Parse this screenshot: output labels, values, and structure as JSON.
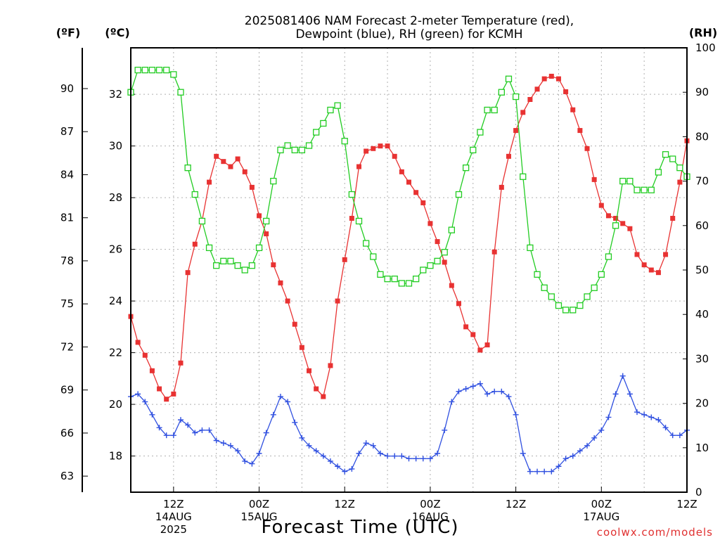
{
  "chart_data": {
    "type": "line",
    "title_line1": "2025081406 NAM Forecast 2-meter Temperature (red),",
    "title_line2": "Dewpoint (blue), RH (green) for KCMH",
    "xlabel": "Forecast Time (UTC)",
    "credit": "coolwx.com/models",
    "units": {
      "fahrenheit": "(ºF)",
      "celsius": "(ºC)",
      "rh": "(RH)"
    },
    "x_hours": [
      6,
      84
    ],
    "celsius_ylim": [
      16.6,
      33.8
    ],
    "rh_ylim": [
      0,
      100
    ],
    "celsius_ticks": [
      18,
      20,
      22,
      24,
      26,
      28,
      30,
      32
    ],
    "fahrenheit_ticks": [
      63,
      66,
      69,
      72,
      75,
      78,
      81,
      84,
      87,
      90
    ],
    "rh_ticks": [
      0,
      10,
      20,
      30,
      40,
      50,
      60,
      70,
      80,
      90,
      100
    ],
    "x_ticks": [
      {
        "hour": 12,
        "lines": [
          "12Z",
          "14AUG",
          "2025"
        ]
      },
      {
        "hour": 24,
        "lines": [
          "00Z",
          "15AUG"
        ]
      },
      {
        "hour": 36,
        "lines": [
          "12Z"
        ]
      },
      {
        "hour": 48,
        "lines": [
          "00Z",
          "16AUG"
        ]
      },
      {
        "hour": 60,
        "lines": [
          "12Z"
        ]
      },
      {
        "hour": 72,
        "lines": [
          "00Z",
          "17AUG"
        ]
      },
      {
        "hour": 84,
        "lines": [
          "12Z"
        ]
      }
    ],
    "series": [
      {
        "name": "Temperature",
        "color": "#e83232",
        "marker": "filled-square",
        "unit": "C",
        "values": [
          [
            6,
            23.4
          ],
          [
            7,
            22.4
          ],
          [
            8,
            21.9
          ],
          [
            9,
            21.3
          ],
          [
            10,
            20.6
          ],
          [
            11,
            20.2
          ],
          [
            12,
            20.4
          ],
          [
            13,
            21.6
          ],
          [
            14,
            25.1
          ],
          [
            15,
            26.2
          ],
          [
            16,
            27.1
          ],
          [
            17,
            28.6
          ],
          [
            18,
            29.6
          ],
          [
            19,
            29.4
          ],
          [
            20,
            29.2
          ],
          [
            21,
            29.5
          ],
          [
            22,
            29.0
          ],
          [
            23,
            28.4
          ],
          [
            24,
            27.3
          ],
          [
            25,
            26.6
          ],
          [
            26,
            25.4
          ],
          [
            27,
            24.7
          ],
          [
            28,
            24.0
          ],
          [
            29,
            23.1
          ],
          [
            30,
            22.2
          ],
          [
            31,
            21.3
          ],
          [
            32,
            20.6
          ],
          [
            33,
            20.3
          ],
          [
            34,
            21.5
          ],
          [
            35,
            24.0
          ],
          [
            36,
            25.6
          ],
          [
            37,
            27.2
          ],
          [
            38,
            29.2
          ],
          [
            39,
            29.8
          ],
          [
            40,
            29.9
          ],
          [
            41,
            30.0
          ],
          [
            42,
            30.0
          ],
          [
            43,
            29.6
          ],
          [
            44,
            29.0
          ],
          [
            45,
            28.6
          ],
          [
            46,
            28.2
          ],
          [
            47,
            27.8
          ],
          [
            48,
            27.0
          ],
          [
            49,
            26.3
          ],
          [
            50,
            25.5
          ],
          [
            51,
            24.6
          ],
          [
            52,
            23.9
          ],
          [
            53,
            23.0
          ],
          [
            54,
            22.7
          ],
          [
            55,
            22.1
          ],
          [
            56,
            22.3
          ],
          [
            57,
            25.9
          ],
          [
            58,
            28.4
          ],
          [
            59,
            29.6
          ],
          [
            60,
            30.6
          ],
          [
            61,
            31.3
          ],
          [
            62,
            31.8
          ],
          [
            63,
            32.2
          ],
          [
            64,
            32.6
          ],
          [
            65,
            32.7
          ],
          [
            66,
            32.6
          ],
          [
            67,
            32.1
          ],
          [
            68,
            31.4
          ],
          [
            69,
            30.6
          ],
          [
            70,
            29.9
          ],
          [
            71,
            28.7
          ],
          [
            72,
            27.7
          ],
          [
            73,
            27.3
          ],
          [
            74,
            27.2
          ],
          [
            75,
            27.0
          ],
          [
            76,
            26.8
          ],
          [
            77,
            25.8
          ],
          [
            78,
            25.4
          ],
          [
            79,
            25.2
          ],
          [
            80,
            25.1
          ],
          [
            81,
            25.8
          ],
          [
            82,
            27.2
          ],
          [
            83,
            28.6
          ],
          [
            84,
            30.2
          ],
          [
            85,
            30.9
          ],
          [
            86,
            31.1
          ],
          [
            87,
            31.6
          ],
          [
            88,
            31.0
          ]
        ]
      },
      {
        "name": "Dewpoint",
        "color": "#3050e0",
        "marker": "plus",
        "unit": "C",
        "values": [
          [
            6,
            20.3
          ],
          [
            7,
            20.4
          ],
          [
            8,
            20.1
          ],
          [
            9,
            19.6
          ],
          [
            10,
            19.1
          ],
          [
            11,
            18.8
          ],
          [
            12,
            18.8
          ],
          [
            13,
            19.4
          ],
          [
            14,
            19.2
          ],
          [
            15,
            18.9
          ],
          [
            16,
            19.0
          ],
          [
            17,
            19.0
          ],
          [
            18,
            18.6
          ],
          [
            19,
            18.5
          ],
          [
            20,
            18.4
          ],
          [
            21,
            18.2
          ],
          [
            22,
            17.8
          ],
          [
            23,
            17.7
          ],
          [
            24,
            18.1
          ],
          [
            25,
            18.9
          ],
          [
            26,
            19.6
          ],
          [
            27,
            20.3
          ],
          [
            28,
            20.1
          ],
          [
            29,
            19.3
          ],
          [
            30,
            18.7
          ],
          [
            31,
            18.4
          ],
          [
            32,
            18.2
          ],
          [
            33,
            18.0
          ],
          [
            34,
            17.8
          ],
          [
            35,
            17.6
          ],
          [
            36,
            17.4
          ],
          [
            37,
            17.5
          ],
          [
            38,
            18.1
          ],
          [
            39,
            18.5
          ],
          [
            40,
            18.4
          ],
          [
            41,
            18.1
          ],
          [
            42,
            18.0
          ],
          [
            43,
            18.0
          ],
          [
            44,
            18.0
          ],
          [
            45,
            17.9
          ],
          [
            46,
            17.9
          ],
          [
            47,
            17.9
          ],
          [
            48,
            17.9
          ],
          [
            49,
            18.1
          ],
          [
            50,
            19.0
          ],
          [
            51,
            20.1
          ],
          [
            52,
            20.5
          ],
          [
            53,
            20.6
          ],
          [
            54,
            20.7
          ],
          [
            55,
            20.8
          ],
          [
            56,
            20.4
          ],
          [
            57,
            20.5
          ],
          [
            58,
            20.5
          ],
          [
            59,
            20.3
          ],
          [
            60,
            19.6
          ],
          [
            61,
            18.1
          ],
          [
            62,
            17.4
          ],
          [
            63,
            17.4
          ],
          [
            64,
            17.4
          ],
          [
            65,
            17.4
          ],
          [
            66,
            17.6
          ],
          [
            67,
            17.9
          ],
          [
            68,
            18.0
          ],
          [
            69,
            18.2
          ],
          [
            70,
            18.4
          ],
          [
            71,
            18.7
          ],
          [
            72,
            19.0
          ],
          [
            73,
            19.5
          ],
          [
            74,
            20.4
          ],
          [
            75,
            21.1
          ],
          [
            76,
            20.4
          ],
          [
            77,
            19.7
          ],
          [
            78,
            19.6
          ],
          [
            79,
            19.5
          ],
          [
            80,
            19.4
          ],
          [
            81,
            19.1
          ],
          [
            82,
            18.8
          ],
          [
            83,
            18.8
          ],
          [
            84,
            19.0
          ],
          [
            85,
            19.5
          ],
          [
            86,
            19.7
          ],
          [
            87,
            19.7
          ],
          [
            88,
            20.0
          ],
          [
            89,
            20.2
          ],
          [
            90,
            20.7
          ]
        ]
      },
      {
        "name": "RH",
        "color": "#22cc22",
        "marker": "open-square",
        "unit": "%",
        "values": [
          [
            6,
            90
          ],
          [
            7,
            95
          ],
          [
            8,
            95
          ],
          [
            9,
            95
          ],
          [
            10,
            95
          ],
          [
            11,
            95
          ],
          [
            12,
            94
          ],
          [
            13,
            90
          ],
          [
            14,
            73
          ],
          [
            15,
            67
          ],
          [
            16,
            61
          ],
          [
            17,
            55
          ],
          [
            18,
            51
          ],
          [
            19,
            52
          ],
          [
            20,
            52
          ],
          [
            21,
            51
          ],
          [
            22,
            50
          ],
          [
            23,
            51
          ],
          [
            24,
            55
          ],
          [
            25,
            61
          ],
          [
            26,
            70
          ],
          [
            27,
            77
          ],
          [
            28,
            78
          ],
          [
            29,
            77
          ],
          [
            30,
            77
          ],
          [
            31,
            78
          ],
          [
            32,
            81
          ],
          [
            33,
            83
          ],
          [
            34,
            86
          ],
          [
            35,
            87
          ],
          [
            36,
            79
          ],
          [
            37,
            67
          ],
          [
            38,
            61
          ],
          [
            39,
            56
          ],
          [
            40,
            53
          ],
          [
            41,
            49
          ],
          [
            42,
            48
          ],
          [
            43,
            48
          ],
          [
            44,
            47
          ],
          [
            45,
            47
          ],
          [
            46,
            48
          ],
          [
            47,
            50
          ],
          [
            48,
            51
          ],
          [
            49,
            52
          ],
          [
            50,
            54
          ],
          [
            51,
            59
          ],
          [
            52,
            67
          ],
          [
            53,
            73
          ],
          [
            54,
            77
          ],
          [
            55,
            81
          ],
          [
            56,
            86
          ],
          [
            57,
            86
          ],
          [
            58,
            90
          ],
          [
            59,
            93
          ],
          [
            60,
            89
          ],
          [
            61,
            71
          ],
          [
            62,
            55
          ],
          [
            63,
            49
          ],
          [
            64,
            46
          ],
          [
            65,
            44
          ],
          [
            66,
            42
          ],
          [
            67,
            41
          ],
          [
            68,
            41
          ],
          [
            69,
            42
          ],
          [
            70,
            44
          ],
          [
            71,
            46
          ],
          [
            72,
            49
          ],
          [
            73,
            53
          ],
          [
            74,
            60
          ],
          [
            75,
            70
          ],
          [
            76,
            70
          ],
          [
            77,
            68
          ],
          [
            78,
            68
          ],
          [
            79,
            68
          ],
          [
            80,
            72
          ],
          [
            81,
            76
          ],
          [
            82,
            75
          ],
          [
            83,
            73
          ],
          [
            84,
            71
          ],
          [
            85,
            68
          ],
          [
            86,
            62
          ],
          [
            87,
            54
          ],
          [
            88,
            53
          ],
          [
            89,
            52
          ],
          [
            90,
            57
          ]
        ]
      }
    ]
  }
}
